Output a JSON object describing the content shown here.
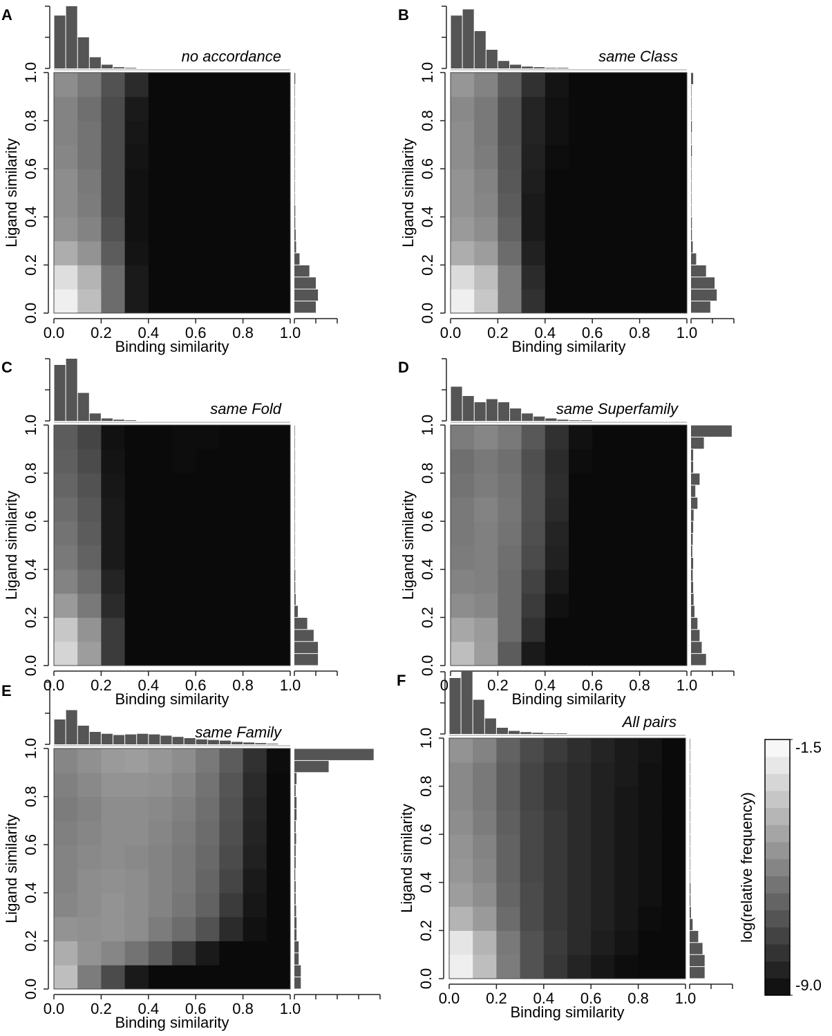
{
  "chart_data": [
    {
      "type": "heatmap",
      "label": "A",
      "title": "no accordance",
      "x_label": "Binding similarity",
      "y_label": "Ligand similarity",
      "xlim": [
        0,
        1
      ],
      "ylim": [
        0,
        1
      ],
      "xticks": [
        {
          "value": 0,
          "label": "0.0"
        },
        0.2,
        0.4,
        0.6,
        0.8,
        {
          "value": 1,
          "label": "1.0"
        }
      ],
      "yticks": [
        {
          "value": 0,
          "label": "0.0"
        },
        0.2,
        0.4,
        0.6,
        0.8,
        {
          "value": 1,
          "label": "1.0"
        }
      ],
      "z": [
        [
          -2.0,
          -3.5,
          -6.0,
          -8.5,
          -9,
          -9,
          -9,
          -9,
          -9,
          -9
        ],
        [
          -2.5,
          -3.8,
          -6.0,
          -8.5,
          -9,
          -9,
          -9,
          -9,
          -9,
          -9
        ],
        [
          -4.0,
          -4.8,
          -6.5,
          -8.7,
          -9,
          -9,
          -9,
          -9,
          -9,
          -9
        ],
        [
          -4.8,
          -5.3,
          -6.8,
          -8.8,
          -9,
          -9,
          -9,
          -9,
          -9,
          -9
        ],
        [
          -5.0,
          -5.5,
          -7.0,
          -8.8,
          -9,
          -9,
          -9,
          -9,
          -9,
          -9
        ],
        [
          -5.0,
          -5.6,
          -7.0,
          -8.8,
          -9,
          -9,
          -9,
          -9,
          -9,
          -9
        ],
        [
          -5.2,
          -5.8,
          -7.0,
          -8.7,
          -9,
          -9,
          -9,
          -9,
          -9,
          -9
        ],
        [
          -5.3,
          -5.8,
          -7.0,
          -8.6,
          -9,
          -9,
          -9,
          -9,
          -9,
          -9
        ],
        [
          -5.3,
          -5.9,
          -7.0,
          -8.5,
          -9,
          -9,
          -9,
          -9,
          -9,
          -9
        ],
        [
          -5.0,
          -5.6,
          -6.8,
          -8.0,
          -9,
          -9,
          -9,
          -9,
          -9,
          -9
        ]
      ],
      "top_hist": [
        0.85,
        1.0,
        0.5,
        0.18,
        0.06,
        0.02,
        0.01,
        0,
        0,
        0,
        0,
        0,
        0,
        0,
        0,
        0,
        0,
        0,
        0,
        0
      ],
      "right_hist": [
        0.5,
        0.55,
        0.5,
        0.35,
        0.12,
        0.04,
        0.03,
        0.02,
        0.02,
        0.01,
        0.01,
        0.01,
        0.01,
        0.01,
        0.01,
        0.01,
        0.01,
        0.01,
        0.01,
        0.02
      ],
      "top_hist_ticks": [
        0,
        0.5,
        1
      ],
      "right_hist_ticks": [
        0,
        0.5,
        1
      ]
    },
    {
      "type": "heatmap",
      "label": "B",
      "title": "same Class",
      "x_label": "Binding similarity",
      "y_label": "Ligand similarity",
      "xlim": [
        0,
        1
      ],
      "ylim": [
        0,
        1
      ],
      "xticks": [
        {
          "value": 0,
          "label": "0.0"
        },
        0.2,
        0.4,
        0.6,
        0.8,
        {
          "value": 1,
          "label": "1.0"
        }
      ],
      "yticks": [
        {
          "value": 0,
          "label": "0.0"
        },
        0.2,
        0.4,
        0.6,
        0.8,
        {
          "value": 1,
          "label": "1.0"
        }
      ],
      "z": [
        [
          -2.0,
          -3.2,
          -5.5,
          -7.8,
          -9,
          -9,
          -9,
          -9,
          -9,
          -9
        ],
        [
          -2.6,
          -3.5,
          -5.5,
          -8.0,
          -9,
          -9,
          -9,
          -9,
          -9,
          -9
        ],
        [
          -4.0,
          -4.5,
          -6.0,
          -8.3,
          -9,
          -9,
          -9,
          -9,
          -9,
          -9
        ],
        [
          -4.6,
          -5.0,
          -6.3,
          -8.5,
          -9,
          -9,
          -9,
          -9,
          -9,
          -9
        ],
        [
          -4.8,
          -5.2,
          -6.5,
          -8.5,
          -9,
          -9,
          -9,
          -9,
          -9,
          -9
        ],
        [
          -4.8,
          -5.3,
          -6.6,
          -8.4,
          -9,
          -9,
          -9,
          -9,
          -9,
          -9
        ],
        [
          -5.0,
          -5.5,
          -6.7,
          -8.3,
          -8.9,
          -9,
          -9,
          -9,
          -9,
          -9
        ],
        [
          -5.0,
          -5.6,
          -6.8,
          -8.2,
          -8.8,
          -9,
          -9,
          -9,
          -9,
          -9
        ],
        [
          -5.1,
          -5.6,
          -6.8,
          -8.2,
          -8.8,
          -9,
          -9,
          -9,
          -9,
          -9
        ],
        [
          -4.7,
          -5.3,
          -6.5,
          -7.8,
          -8.7,
          -9,
          -9,
          -9,
          -9,
          -9
        ]
      ],
      "top_hist": [
        0.85,
        0.95,
        0.6,
        0.3,
        0.12,
        0.06,
        0.03,
        0.02,
        0.01,
        0.01,
        0,
        0,
        0,
        0,
        0,
        0,
        0,
        0,
        0,
        0
      ],
      "right_hist": [
        0.45,
        0.6,
        0.55,
        0.35,
        0.12,
        0.04,
        0.02,
        0.02,
        0.01,
        0.01,
        0.01,
        0.01,
        0.01,
        0.02,
        0.01,
        0.02,
        0.01,
        0.01,
        0.01,
        0.05
      ],
      "top_hist_ticks": [
        0,
        0.5,
        1
      ],
      "right_hist_ticks": [
        0,
        0.5,
        1
      ]
    },
    {
      "type": "heatmap",
      "label": "C",
      "title": "same Fold",
      "x_label": "Binding similarity",
      "y_label": "Ligand similarity",
      "xlim": [
        0,
        1
      ],
      "ylim": [
        0,
        1
      ],
      "xticks": [
        {
          "value": 0,
          "label": "0.0"
        },
        0.2,
        0.4,
        0.6,
        0.8,
        {
          "value": 1,
          "label": "1.0"
        }
      ],
      "yticks": [
        {
          "value": 0,
          "label": "0.0"
        },
        0.2,
        0.4,
        0.6,
        0.8,
        {
          "value": 1,
          "label": "1.0"
        }
      ],
      "z": [
        [
          -2.8,
          -4.5,
          -7.5,
          -9,
          -9,
          -9,
          -9,
          -9,
          -9,
          -9
        ],
        [
          -3.2,
          -4.8,
          -7.5,
          -9,
          -9,
          -9,
          -9,
          -9,
          -9,
          -9
        ],
        [
          -4.6,
          -5.6,
          -8.0,
          -9,
          -9,
          -9,
          -9,
          -9,
          -9,
          -9
        ],
        [
          -5.3,
          -6.0,
          -8.2,
          -9,
          -9,
          -9,
          -9,
          -9,
          -9,
          -9
        ],
        [
          -5.6,
          -6.3,
          -8.5,
          -9,
          -9,
          -9,
          -9,
          -9,
          -9,
          -9
        ],
        [
          -5.8,
          -6.5,
          -8.5,
          -9,
          -9,
          -9,
          -9,
          -9,
          -9,
          -9
        ],
        [
          -6.0,
          -6.6,
          -8.5,
          -9,
          -9,
          -9,
          -9,
          -9,
          -9,
          -9
        ],
        [
          -6.2,
          -6.8,
          -8.6,
          -9,
          -9,
          -9,
          -9,
          -9,
          -9,
          -9
        ],
        [
          -6.4,
          -7.0,
          -8.7,
          -9,
          -9,
          -8.9,
          -9,
          -9,
          -9,
          -9
        ],
        [
          -6.5,
          -7.2,
          -8.8,
          -9,
          -9,
          -8.9,
          -8.9,
          -9,
          -9,
          -9
        ]
      ],
      "top_hist": [
        0.9,
        1.0,
        0.45,
        0.12,
        0.04,
        0.02,
        0.01,
        0,
        0,
        0,
        0,
        0,
        0,
        0,
        0,
        0,
        0,
        0,
        0,
        0
      ],
      "right_hist": [
        0.55,
        0.55,
        0.45,
        0.3,
        0.08,
        0.03,
        0.02,
        0.02,
        0.01,
        0.01,
        0.01,
        0.01,
        0.01,
        0.01,
        0.01,
        0.01,
        0.01,
        0.01,
        0.01,
        0.01
      ],
      "top_hist_ticks": [
        0,
        0.5,
        1
      ],
      "right_hist_ticks": [
        0,
        0.5,
        1
      ]
    },
    {
      "type": "heatmap",
      "label": "D",
      "title": "same Superfamily",
      "x_label": "Binding similarity",
      "y_label": "Ligand similarity",
      "xlim": [
        0,
        1
      ],
      "ylim": [
        0,
        1
      ],
      "xticks": [
        {
          "value": 0,
          "label": "0.0"
        },
        0.2,
        0.4,
        0.6,
        0.8,
        {
          "value": 1,
          "label": "1.0"
        }
      ],
      "yticks": [
        {
          "value": 0,
          "label": "0.0"
        },
        0.2,
        0.4,
        0.6,
        0.8,
        {
          "value": 1,
          "label": "1.0"
        }
      ],
      "z": [
        [
          -3.5,
          -4.5,
          -6.5,
          -8.5,
          -9,
          -9,
          -9,
          -9,
          -9,
          -9
        ],
        [
          -4.2,
          -4.6,
          -6.0,
          -7.8,
          -9,
          -9,
          -9,
          -9,
          -9,
          -9
        ],
        [
          -5.0,
          -5.2,
          -6.0,
          -7.5,
          -8.8,
          -9,
          -9,
          -9,
          -9,
          -9
        ],
        [
          -5.3,
          -5.4,
          -6.0,
          -7.3,
          -8.5,
          -9,
          -9,
          -9,
          -9,
          -9
        ],
        [
          -5.5,
          -5.4,
          -5.9,
          -7.0,
          -8.3,
          -9,
          -9,
          -9,
          -9,
          -9
        ],
        [
          -5.6,
          -5.4,
          -5.8,
          -6.9,
          -8.2,
          -9,
          -9,
          -9,
          -9,
          -9
        ],
        [
          -5.6,
          -5.3,
          -5.7,
          -6.8,
          -8.0,
          -9,
          -9,
          -9,
          -9,
          -9
        ],
        [
          -5.8,
          -5.5,
          -5.8,
          -6.8,
          -7.9,
          -9,
          -9,
          -9,
          -9,
          -9
        ],
        [
          -5.9,
          -5.6,
          -5.9,
          -6.9,
          -8.0,
          -8.9,
          -9,
          -9,
          -9,
          -9
        ],
        [
          -5.5,
          -5.2,
          -5.6,
          -6.6,
          -7.8,
          -8.8,
          -9,
          -9,
          -9,
          -9
        ]
      ],
      "top_hist": [
        0.55,
        0.4,
        0.3,
        0.35,
        0.3,
        0.2,
        0.12,
        0.07,
        0.04,
        0.02,
        0.01,
        0.01,
        0,
        0,
        0,
        0,
        0,
        0,
        0,
        0
      ],
      "right_hist": [
        0.35,
        0.25,
        0.2,
        0.15,
        0.08,
        0.06,
        0.05,
        0.04,
        0.05,
        0.03,
        0.04,
        0.05,
        0.06,
        0.15,
        0.1,
        0.2,
        0.05,
        0.05,
        0.3,
        0.95
      ],
      "top_hist_ticks": [
        0,
        0.5,
        1
      ],
      "right_hist_ticks": [
        0,
        0.5,
        1
      ]
    },
    {
      "type": "heatmap",
      "label": "E",
      "title": "same Family",
      "x_label": "Binding similarity",
      "y_label": "Ligand similarity",
      "xlim": [
        0,
        1
      ],
      "ylim": [
        0,
        1
      ],
      "xticks": [
        {
          "value": 0,
          "label": "0.0"
        },
        0.2,
        0.4,
        0.6,
        0.8,
        {
          "value": 1,
          "label": "1.0"
        }
      ],
      "yticks": [
        {
          "value": 0,
          "label": "0.0"
        },
        0.2,
        0.4,
        0.6,
        0.8,
        {
          "value": 1,
          "label": "1.0"
        }
      ],
      "z": [
        [
          -3.5,
          -5.5,
          -7.0,
          -8.5,
          -9,
          -9,
          -9,
          -9,
          -9,
          -9
        ],
        [
          -4.0,
          -4.8,
          -5.2,
          -5.8,
          -6.5,
          -7.5,
          -8.5,
          -9,
          -9,
          -9
        ],
        [
          -4.8,
          -4.9,
          -4.8,
          -5.0,
          -5.5,
          -6.0,
          -6.8,
          -8.0,
          -8.8,
          -9
        ],
        [
          -5.2,
          -5.0,
          -4.8,
          -5.0,
          -5.3,
          -5.7,
          -6.3,
          -7.5,
          -8.6,
          -9
        ],
        [
          -5.3,
          -5.0,
          -4.9,
          -5.0,
          -5.3,
          -5.6,
          -6.2,
          -7.2,
          -8.5,
          -9
        ],
        [
          -5.3,
          -5.1,
          -5.0,
          -5.1,
          -5.3,
          -5.6,
          -6.1,
          -7.0,
          -8.3,
          -9
        ],
        [
          -5.4,
          -5.2,
          -5.0,
          -5.0,
          -5.2,
          -5.5,
          -6.0,
          -6.9,
          -8.2,
          -9
        ],
        [
          -5.5,
          -5.3,
          -5.0,
          -5.0,
          -5.1,
          -5.4,
          -5.9,
          -6.8,
          -8.1,
          -9
        ],
        [
          -5.4,
          -5.1,
          -4.8,
          -4.8,
          -4.9,
          -5.2,
          -5.8,
          -6.7,
          -8.0,
          -9
        ],
        [
          -5.2,
          -4.9,
          -4.6,
          -4.5,
          -4.7,
          -5.0,
          -5.6,
          -6.5,
          -7.8,
          -8.9
        ]
      ],
      "top_hist": [
        0.4,
        0.55,
        0.3,
        0.2,
        0.17,
        0.15,
        0.16,
        0.17,
        0.16,
        0.14,
        0.12,
        0.1,
        0.08,
        0.07,
        0.06,
        0.04,
        0.03,
        0.02,
        0.01,
        0
      ],
      "right_hist": [
        0.15,
        0.15,
        0.1,
        0.1,
        0.05,
        0.05,
        0.04,
        0.03,
        0.03,
        0.02,
        0.03,
        0.03,
        0.04,
        0.03,
        0.05,
        0.05,
        0.03,
        0.05,
        0.8,
        1.85
      ],
      "top_hist_ticks": [
        0,
        0.5,
        1
      ],
      "right_hist_ticks": [
        0,
        0.5,
        1,
        1.5,
        2
      ]
    },
    {
      "type": "heatmap",
      "label": "F",
      "title": "All pairs",
      "x_label": "Binding similarity",
      "y_label": "Ligand similarity",
      "xlim": [
        0,
        1
      ],
      "ylim": [
        0,
        1
      ],
      "xticks": [
        {
          "value": 0,
          "label": "0.0"
        },
        0.2,
        0.4,
        0.6,
        0.8,
        {
          "value": 1,
          "label": "1.0"
        }
      ],
      "yticks": [
        {
          "value": 0,
          "label": "0.0"
        },
        0.2,
        0.4,
        0.6,
        0.8,
        {
          "value": 1,
          "label": "1.0"
        }
      ],
      "z": [
        [
          -2.0,
          -3.5,
          -5.5,
          -6.8,
          -7.6,
          -8.2,
          -8.6,
          -8.9,
          -9,
          -9
        ],
        [
          -2.3,
          -3.8,
          -5.6,
          -6.8,
          -7.5,
          -8.0,
          -8.4,
          -8.7,
          -9,
          -9
        ],
        [
          -3.8,
          -4.6,
          -6.0,
          -7.0,
          -7.6,
          -8.0,
          -8.3,
          -8.6,
          -8.9,
          -9
        ],
        [
          -4.5,
          -5.0,
          -6.2,
          -7.0,
          -7.6,
          -8.0,
          -8.3,
          -8.6,
          -8.8,
          -9
        ],
        [
          -4.7,
          -5.2,
          -6.3,
          -7.1,
          -7.6,
          -8.0,
          -8.3,
          -8.6,
          -8.8,
          -9
        ],
        [
          -4.8,
          -5.3,
          -6.3,
          -7.1,
          -7.6,
          -8.0,
          -8.3,
          -8.6,
          -8.8,
          -9
        ],
        [
          -5.0,
          -5.5,
          -6.4,
          -7.1,
          -7.6,
          -8.0,
          -8.3,
          -8.6,
          -8.8,
          -9
        ],
        [
          -5.1,
          -5.6,
          -6.5,
          -7.2,
          -7.7,
          -8.0,
          -8.3,
          -8.6,
          -8.8,
          -9
        ],
        [
          -5.1,
          -5.6,
          -6.5,
          -7.2,
          -7.7,
          -8.0,
          -8.3,
          -8.5,
          -8.8,
          -9
        ],
        [
          -4.8,
          -5.3,
          -6.3,
          -7.0,
          -7.5,
          -7.9,
          -8.2,
          -8.5,
          -8.7,
          -9
        ]
      ],
      "top_hist": [
        0.9,
        1.0,
        0.55,
        0.25,
        0.1,
        0.05,
        0.03,
        0.02,
        0.01,
        0.01,
        0,
        0,
        0,
        0,
        0,
        0,
        0,
        0,
        0,
        0
      ],
      "right_hist": [
        0.35,
        0.35,
        0.3,
        0.2,
        0.07,
        0.03,
        0.02,
        0.02,
        0.01,
        0.01,
        0.01,
        0.01,
        0.01,
        0.01,
        0.01,
        0.01,
        0.01,
        0.01,
        0.01,
        0.01
      ],
      "top_hist_ticks": [
        0,
        0.5,
        1
      ],
      "right_hist_ticks": [
        0,
        0.5,
        1
      ]
    }
  ],
  "colorbar": {
    "label": "log(relative frequency)",
    "lim": [
      -9,
      -1.5
    ],
    "ticks": [
      -1.5,
      {
        "value": -9,
        "label": "-9.0"
      }
    ]
  }
}
